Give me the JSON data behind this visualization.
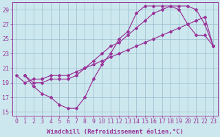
{
  "line1_x": [
    1,
    2,
    3,
    4,
    5,
    6,
    7,
    8,
    9,
    10,
    11,
    12,
    13,
    14,
    15,
    16,
    17,
    18,
    19,
    20,
    21,
    22,
    23
  ],
  "line1_y": [
    20.0,
    18.5,
    17.5,
    17.0,
    16.0,
    15.5,
    15.5,
    17.0,
    19.5,
    21.5,
    23.0,
    25.0,
    26.0,
    28.5,
    29.5,
    29.5,
    29.5,
    29.5,
    29.0,
    27.0,
    25.5,
    25.5,
    24.0
  ],
  "line2_x": [
    1,
    2,
    3,
    4,
    5,
    6,
    7,
    8,
    9,
    10,
    11,
    12,
    13,
    14,
    15,
    16,
    17,
    18,
    19,
    20,
    21,
    22,
    23
  ],
  "line2_y": [
    20.0,
    19.0,
    19.0,
    19.5,
    19.5,
    19.5,
    20.0,
    21.0,
    22.0,
    23.0,
    24.0,
    24.5,
    25.5,
    26.5,
    27.5,
    28.5,
    29.0,
    29.5,
    29.5,
    29.5,
    29.0,
    27.0,
    24.0
  ],
  "line3_x": [
    0,
    1,
    2,
    3,
    4,
    5,
    6,
    7,
    8,
    9,
    10,
    11,
    12,
    13,
    14,
    15,
    16,
    17,
    18,
    19,
    20,
    21,
    22,
    23
  ],
  "line3_y": [
    20.0,
    19.0,
    19.5,
    19.5,
    20.0,
    20.0,
    20.0,
    20.5,
    21.0,
    21.5,
    22.0,
    22.5,
    23.0,
    23.5,
    24.0,
    24.5,
    25.0,
    25.5,
    26.0,
    26.5,
    27.0,
    27.5,
    28.0,
    24.0
  ],
  "line_color": "#993399",
  "bg_color": "#cce8ee",
  "grid_color": "#99bbcc",
  "xlim_min": -0.5,
  "xlim_max": 23.5,
  "ylim_min": 14.5,
  "ylim_max": 30.0,
  "yticks": [
    15,
    17,
    19,
    21,
    23,
    25,
    27,
    29
  ],
  "xticks": [
    0,
    1,
    2,
    3,
    4,
    5,
    6,
    7,
    8,
    9,
    10,
    11,
    12,
    13,
    14,
    15,
    16,
    17,
    18,
    19,
    20,
    21,
    22,
    23
  ],
  "xlabel": "Windchill (Refroidissement éolien,°C)",
  "xlabel_fontsize": 6.5,
  "tick_fontsize": 6.0,
  "marker": "D",
  "markersize": 2.0,
  "linewidth": 0.9
}
